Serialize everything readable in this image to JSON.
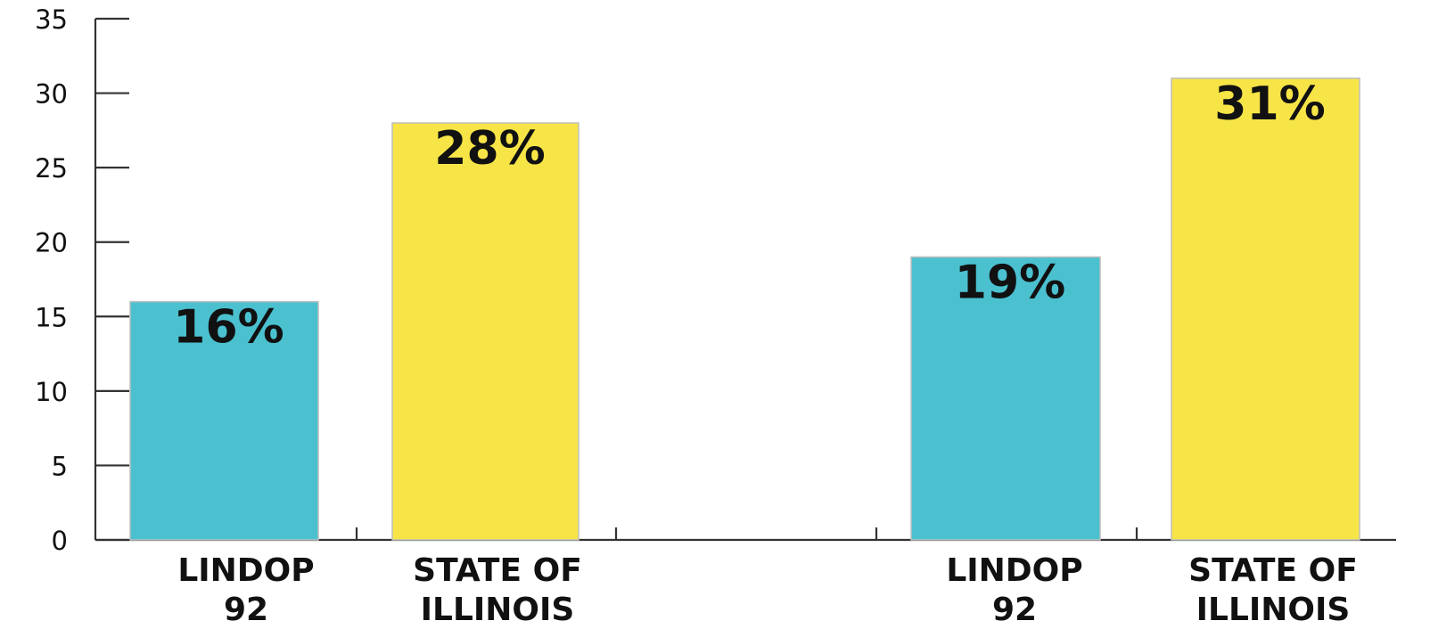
{
  "chart_data": {
    "type": "bar",
    "title": "",
    "xlabel": "",
    "ylabel": "",
    "ylim": [
      0,
      35
    ],
    "yticks": [
      "0",
      "5",
      "10",
      "15",
      "20",
      "25",
      "30",
      "35"
    ],
    "grid": false,
    "categories": [
      [
        "LINDOP",
        "92"
      ],
      [
        "STATE OF",
        "ILLINOIS"
      ],
      [
        "LINDOP",
        "92"
      ],
      [
        "STATE OF",
        "ILLINOIS"
      ]
    ],
    "values": [
      16,
      28,
      19,
      31
    ],
    "value_labels": [
      "16%",
      "28%",
      "19%",
      "31%"
    ],
    "bar_colors": [
      "#4bc1d0",
      "#f7e547",
      "#4bc1d0",
      "#f7e547"
    ]
  }
}
